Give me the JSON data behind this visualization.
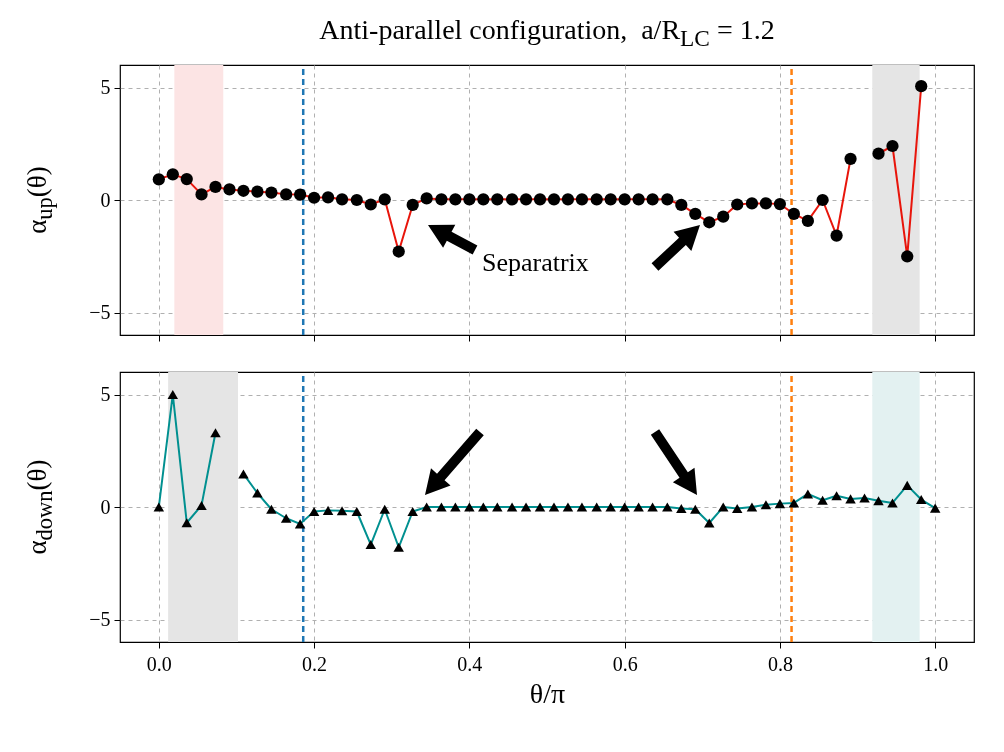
{
  "chart_data": [
    {
      "type": "line",
      "title": "Anti-parallel configuration,  a/R$_{LC}$ = 1.2",
      "ylabel": "α$_{up}$(θ)",
      "annotations": [
        "Separatrix"
      ],
      "x": [
        0,
        0.018,
        0.036,
        0.055,
        0.073,
        0.091,
        0.109,
        0.127,
        0.145,
        0.164,
        0.182,
        0.2,
        0.218,
        0.236,
        0.255,
        0.273,
        0.291,
        0.309,
        0.327,
        0.345,
        0.364,
        0.382,
        0.4,
        0.418,
        0.436,
        0.455,
        0.473,
        0.491,
        0.509,
        0.527,
        0.545,
        0.564,
        0.582,
        0.6,
        0.618,
        0.636,
        0.655,
        0.673,
        0.691,
        0.709,
        0.727,
        0.745,
        0.764,
        0.782,
        0.8,
        0.818,
        0.836,
        0.855,
        0.873,
        0.891,
        0.909,
        0.927,
        0.945,
        0.964,
        0.982
      ],
      "series": [
        {
          "color": "#e8150b",
          "values": [
            0.92,
            1.14,
            0.93,
            0.25,
            0.58,
            0.47,
            0.41,
            0.37,
            0.33,
            0.25,
            0.24,
            0.1,
            0.12,
            0.03,
            0.0,
            -0.2,
            0.03,
            -2.29,
            -0.22,
            0.07,
            0.03,
            0.03,
            0.03,
            0.03,
            0.03,
            0.03,
            0.03,
            0.03,
            0.03,
            0.03,
            0.03,
            0.03,
            0.03,
            0.03,
            0.03,
            0.03,
            0.03,
            -0.22,
            -0.62,
            -0.99,
            -0.74,
            -0.2,
            -0.15,
            -0.15,
            -0.18,
            -0.62,
            -0.93,
            0.0,
            -1.58,
            1.83,
            null,
            2.06,
            2.4,
            -2.51,
            5.06
          ]
        }
      ],
      "xlim": [
        -0.05,
        1.05
      ],
      "xticks": [
        0,
        0.2,
        0.4,
        0.6,
        0.8,
        1
      ],
      "ylim": [
        -6,
        6
      ],
      "yticks": [
        -5,
        0,
        5
      ],
      "tick_labels": "y",
      "grid": true,
      "marker": "circle",
      "line_style": "solid",
      "bands": [
        {
          "axis": "x",
          "from": 0.02,
          "to": 0.083,
          "color": "#fce4e4"
        },
        {
          "axis": "x",
          "from": 0.919,
          "to": 0.98,
          "color": "#e5e5e5"
        }
      ],
      "ref_lines": [
        {
          "axis": "x",
          "value": 0.186,
          "color": "#1f77b4",
          "line_style": "dashed"
        },
        {
          "axis": "x",
          "value": 0.815,
          "color": "#ff7f0e",
          "line_style": "dashed"
        }
      ]
    },
    {
      "type": "line",
      "xlabel": "θ/π",
      "ylabel": "α$_{down}$(θ)",
      "x": [
        0,
        0.018,
        0.036,
        0.055,
        0.073,
        0.091,
        0.109,
        0.127,
        0.145,
        0.164,
        0.182,
        0.2,
        0.218,
        0.236,
        0.255,
        0.273,
        0.291,
        0.309,
        0.327,
        0.345,
        0.364,
        0.382,
        0.4,
        0.418,
        0.436,
        0.455,
        0.473,
        0.491,
        0.509,
        0.527,
        0.545,
        0.564,
        0.582,
        0.6,
        0.618,
        0.636,
        0.655,
        0.673,
        0.691,
        0.709,
        0.727,
        0.745,
        0.764,
        0.782,
        0.8,
        0.818,
        0.836,
        0.855,
        0.873,
        0.891,
        0.909,
        0.927,
        0.945,
        0.964,
        0.982,
        1
      ],
      "series": [
        {
          "color": "#009090",
          "values": [
            0.0,
            5.0,
            -0.7,
            0.07,
            3.3,
            null,
            1.47,
            0.62,
            -0.1,
            -0.5,
            -0.75,
            -0.2,
            -0.15,
            -0.17,
            -0.2,
            -1.67,
            -0.1,
            -1.79,
            -0.2,
            0.0,
            0.0,
            0.0,
            0.0,
            0.0,
            0.0,
            0.0,
            0.0,
            0.0,
            0.0,
            0.0,
            0.0,
            0.0,
            0.0,
            0.0,
            0.0,
            0.0,
            0.0,
            -0.07,
            -0.1,
            -0.71,
            0.0,
            -0.07,
            0.0,
            0.1,
            0.15,
            0.18,
            0.58,
            0.3,
            0.5,
            0.36,
            0.4,
            0.28,
            0.18,
            0.96,
            0.33,
            -0.05
          ]
        }
      ],
      "xlim": [
        -0.05,
        1.05
      ],
      "xticks": [
        {
          "value": 0,
          "label": "0.0"
        },
        0.2,
        0.4,
        0.6,
        0.8,
        {
          "value": 1,
          "label": "1.0"
        }
      ],
      "ylim": [
        -6,
        6
      ],
      "yticks": [
        -5,
        0,
        5
      ],
      "grid": true,
      "marker": "triangle",
      "line_style": "solid",
      "bands": [
        {
          "axis": "x",
          "from": 0.012,
          "to": 0.102,
          "color": "#e5e5e5"
        },
        {
          "axis": "x",
          "from": 0.919,
          "to": 0.98,
          "color": "#e3f1f1"
        }
      ],
      "ref_lines": [
        {
          "axis": "x",
          "value": 0.186,
          "color": "#1f77b4",
          "line_style": "dashed"
        },
        {
          "axis": "x",
          "value": 0.815,
          "color": "#ff7f0e",
          "line_style": "dashed"
        }
      ]
    }
  ]
}
